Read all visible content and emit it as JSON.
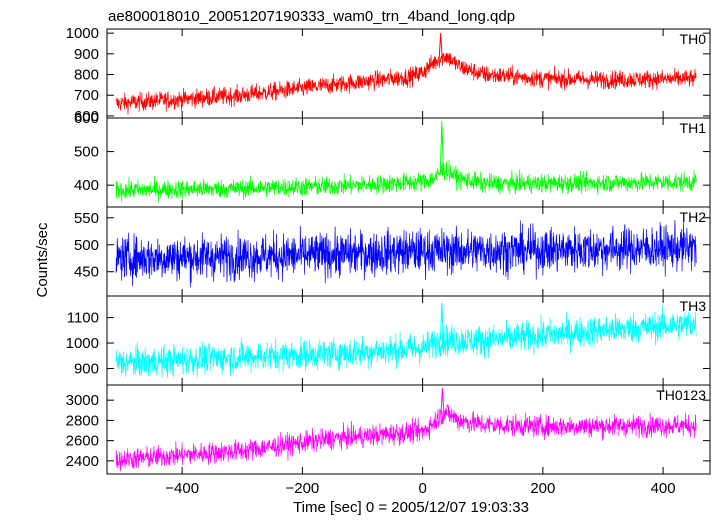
{
  "chart_data": {
    "type": "line",
    "title": "ae800018010_20051207190333_wam0_trn_4band_long.qdp",
    "xlabel": "Time [sec] 0 = 2005/12/07 19:03:33",
    "ylabel": "Counts/sec",
    "xlim": [
      -525,
      478
    ],
    "x_ticks": [
      -400,
      -200,
      0,
      200,
      400
    ],
    "x_tick_labels": [
      "−400",
      "−200",
      "0",
      "200",
      "400"
    ],
    "panels": [
      {
        "name": "TH0",
        "color": "#ff0000",
        "ylim": [
          590,
          1020
        ],
        "y_ticks": [
          600,
          700,
          800,
          900,
          1000
        ],
        "y_tick_labels": [
          "600",
          "700",
          "800",
          "900",
          "1000"
        ],
        "trend_x": [
          -510,
          -300,
          -150,
          -20,
          0,
          15,
          30,
          40,
          60,
          100,
          200,
          300,
          455
        ],
        "trend_y": [
          660,
          700,
          750,
          790,
          810,
          850,
          880,
          890,
          840,
          800,
          780,
          775,
          780
        ],
        "noise": 70,
        "spike": {
          "x": 30,
          "y": 1000
        }
      },
      {
        "name": "TH1",
        "color": "#00ff00",
        "ylim": [
          335,
          600
        ],
        "y_ticks": [
          400,
          500,
          600
        ],
        "y_tick_labels": [
          "400",
          "500",
          "600"
        ],
        "trend_x": [
          -510,
          -300,
          -100,
          0,
          20,
          30,
          40,
          60,
          100,
          200,
          455
        ],
        "trend_y": [
          385,
          390,
          400,
          410,
          420,
          440,
          445,
          420,
          405,
          405,
          410
        ],
        "noise": 45,
        "spike": {
          "x": 32,
          "y": 590
        }
      },
      {
        "name": "TH2",
        "color": "#0000ff",
        "ylim": [
          405,
          570
        ],
        "y_ticks": [
          450,
          500,
          550
        ],
        "y_tick_labels": [
          "450",
          "500",
          "550"
        ],
        "trend_x": [
          -510,
          -200,
          0,
          200,
          455
        ],
        "trend_y": [
          475,
          480,
          488,
          490,
          495
        ],
        "noise": 65,
        "spike": null
      },
      {
        "name": "TH3",
        "color": "#00ffff",
        "ylim": [
          835,
          1185
        ],
        "y_ticks": [
          900,
          1000,
          1100
        ],
        "y_tick_labels": [
          "900",
          "1000",
          "1100"
        ],
        "trend_x": [
          -510,
          -300,
          -100,
          0,
          30,
          100,
          300,
          455
        ],
        "trend_y": [
          920,
          945,
          965,
          980,
          1010,
          1010,
          1050,
          1075
        ],
        "noise": 95,
        "spike": {
          "x": 32,
          "y": 1160
        }
      },
      {
        "name": "TH0123",
        "color": "#ff00ff",
        "ylim": [
          2270,
          3150
        ],
        "y_ticks": [
          2400,
          2600,
          2800,
          3000
        ],
        "y_tick_labels": [
          "2400",
          "2600",
          "2800",
          "3000"
        ],
        "trend_x": [
          -510,
          -300,
          -150,
          0,
          15,
          30,
          40,
          60,
          100,
          200,
          455
        ],
        "trend_y": [
          2410,
          2500,
          2620,
          2690,
          2760,
          2850,
          2880,
          2800,
          2760,
          2740,
          2750
        ],
        "noise": 170,
        "spike": {
          "x": 33,
          "y": 3120
        }
      }
    ]
  }
}
